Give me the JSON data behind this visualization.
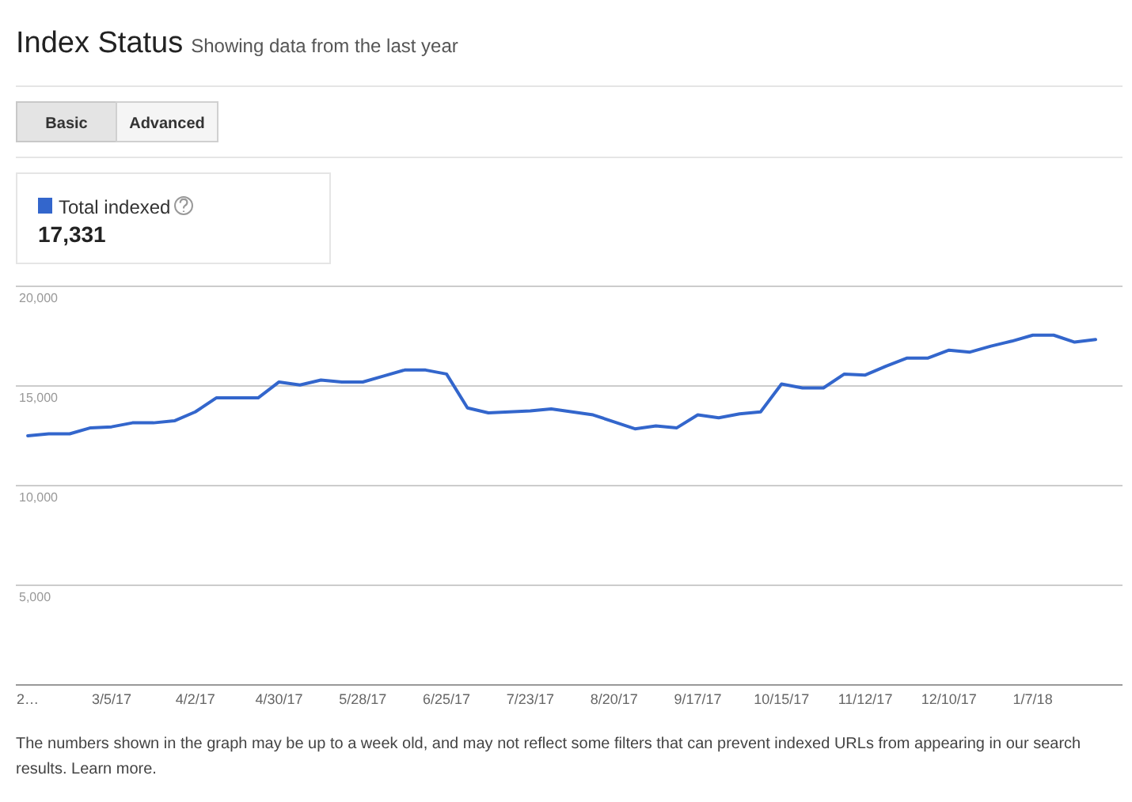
{
  "chart_data": {
    "type": "line",
    "title": "Index Status",
    "subtitle": "Showing data from the last year",
    "x": [
      "2017-02-05",
      "2017-02-12",
      "2017-02-19",
      "2017-02-26",
      "2017-03-05",
      "2017-03-12",
      "2017-03-19",
      "2017-03-26",
      "2017-04-02",
      "2017-04-09",
      "2017-04-16",
      "2017-04-23",
      "2017-04-30",
      "2017-05-07",
      "2017-05-14",
      "2017-05-21",
      "2017-05-28",
      "2017-06-04",
      "2017-06-11",
      "2017-06-18",
      "2017-06-25",
      "2017-07-02",
      "2017-07-09",
      "2017-07-16",
      "2017-07-23",
      "2017-07-30",
      "2017-08-06",
      "2017-08-13",
      "2017-08-20",
      "2017-08-27",
      "2017-09-03",
      "2017-09-10",
      "2017-09-17",
      "2017-09-24",
      "2017-10-01",
      "2017-10-08",
      "2017-10-15",
      "2017-10-22",
      "2017-10-29",
      "2017-11-05",
      "2017-11-12",
      "2017-11-19",
      "2017-11-26",
      "2017-12-03",
      "2017-12-10",
      "2017-12-17",
      "2017-12-24",
      "2017-12-31",
      "2018-01-07",
      "2018-01-14",
      "2018-01-21",
      "2018-01-28"
    ],
    "series": [
      {
        "name": "Total indexed",
        "color": "#3366cc",
        "values": [
          12500,
          12600,
          12600,
          12900,
          12950,
          13150,
          13150,
          13250,
          13700,
          14400,
          14400,
          14400,
          15200,
          15050,
          15300,
          15200,
          15200,
          15500,
          15800,
          15800,
          15600,
          13900,
          13650,
          13700,
          13750,
          13850,
          13700,
          13550,
          13200,
          12850,
          13000,
          12900,
          13550,
          13400,
          13600,
          13700,
          15100,
          14900,
          14900,
          15600,
          15550,
          16000,
          16400,
          16400,
          16800,
          16700,
          17000,
          17250,
          17550,
          17550,
          17200,
          17331
        ]
      }
    ],
    "xlim": [
      "2017-02-01",
      "2018-02-06"
    ],
    "xticks": [
      {
        "value": "2017-02-05",
        "label": "2…"
      },
      {
        "value": "2017-03-05",
        "label": "3/5/17"
      },
      {
        "value": "2017-04-02",
        "label": "4/2/17"
      },
      {
        "value": "2017-04-30",
        "label": "4/30/17"
      },
      {
        "value": "2017-05-28",
        "label": "5/28/17"
      },
      {
        "value": "2017-06-25",
        "label": "6/25/17"
      },
      {
        "value": "2017-07-23",
        "label": "7/23/17"
      },
      {
        "value": "2017-08-20",
        "label": "8/20/17"
      },
      {
        "value": "2017-09-17",
        "label": "9/17/17"
      },
      {
        "value": "2017-10-15",
        "label": "10/15/17"
      },
      {
        "value": "2017-11-12",
        "label": "11/12/17"
      },
      {
        "value": "2017-12-10",
        "label": "12/10/17"
      },
      {
        "value": "2018-01-07",
        "label": "1/7/18"
      }
    ],
    "ylim": [
      0,
      20000
    ],
    "yticks": [
      {
        "value": 5000,
        "label": "5,000"
      },
      {
        "value": 10000,
        "label": "10,000"
      },
      {
        "value": 15000,
        "label": "15,000"
      },
      {
        "value": 20000,
        "label": "20,000"
      }
    ],
    "grid": "y",
    "legend": "top left",
    "marker": "none",
    "line_style": "solid",
    "annotations": [
      "Basic",
      "Advanced",
      "17,331",
      "The numbers shown in the graph may be up to a week old, and may not reflect some filters that can prevent indexed URLs from appearing in our search results. Learn more."
    ]
  }
}
